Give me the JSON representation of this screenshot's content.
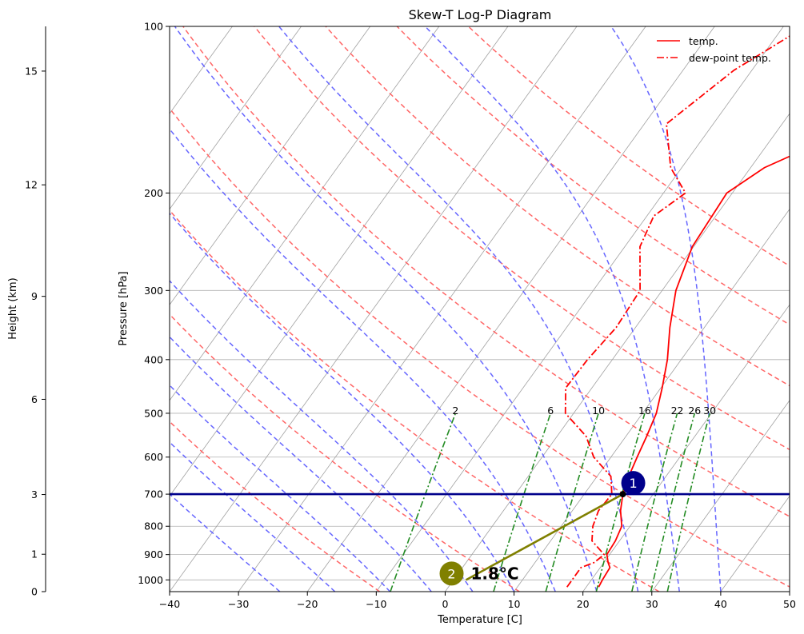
{
  "chart_data": {
    "type": "line",
    "title": "Skew-T Log-P Diagram",
    "xlabel": "Temperature [C]",
    "ylabel": "Pressure [hPa]",
    "height_label": "Height (km)",
    "xlim": [
      -40,
      50
    ],
    "ylim_hpa": [
      1050,
      100
    ],
    "x_ticks": [
      -40,
      -30,
      -20,
      -10,
      0,
      10,
      20,
      30,
      40,
      50
    ],
    "p_ticks": [
      100,
      200,
      300,
      400,
      500,
      600,
      700,
      800,
      900,
      1000
    ],
    "height_ticks": [
      0,
      1,
      3,
      6,
      9,
      12,
      15
    ],
    "grid": true,
    "legend_position": "top-right",
    "colors": {
      "temp": "#ff0000",
      "dewpoint": "#ff0000",
      "isotherm": "#a0a0a0",
      "dry_adiabat": "#ff6666",
      "moist_adiabat": "#6666ff",
      "mixing_ratio": "#228B22",
      "level_line": "#00008b",
      "parcel_line": "#808000",
      "marker_1": "#00008b",
      "marker_2": "#808000"
    },
    "series": [
      {
        "name": "temp.",
        "style": "solid",
        "points": [
          {
            "p": 1030,
            "t": 21.8
          },
          {
            "p": 1000,
            "t": 21.6
          },
          {
            "p": 950,
            "t": 21.4
          },
          {
            "p": 930,
            "t": 20.6
          },
          {
            "p": 900,
            "t": 19.6
          },
          {
            "p": 850,
            "t": 19.4
          },
          {
            "p": 800,
            "t": 18.8
          },
          {
            "p": 750,
            "t": 17.0
          },
          {
            "p": 700,
            "t": 15.6
          },
          {
            "p": 650,
            "t": 14.6
          },
          {
            "p": 600,
            "t": 13.8
          },
          {
            "p": 550,
            "t": 13.0
          },
          {
            "p": 500,
            "t": 12.0
          },
          {
            "p": 450,
            "t": 10.2
          },
          {
            "p": 400,
            "t": 8.0
          },
          {
            "p": 350,
            "t": 5.0
          },
          {
            "p": 300,
            "t": 2.0
          },
          {
            "p": 250,
            "t": -0.2
          },
          {
            "p": 200,
            "t": -0.8
          },
          {
            "p": 180,
            "t": 2.0
          },
          {
            "p": 150,
            "t": 11.6
          },
          {
            "p": 130,
            "t": 14.2
          },
          {
            "p": 100,
            "t": 22.0
          }
        ]
      },
      {
        "name": "dew-point temp.",
        "style": "dashdot",
        "points": [
          {
            "p": 1030,
            "t": 17.2
          },
          {
            "p": 1000,
            "t": 17.2
          },
          {
            "p": 950,
            "t": 17.2
          },
          {
            "p": 930,
            "t": 18.6
          },
          {
            "p": 900,
            "t": 19.2
          },
          {
            "p": 850,
            "t": 16.0
          },
          {
            "p": 800,
            "t": 14.6
          },
          {
            "p": 750,
            "t": 13.8
          },
          {
            "p": 700,
            "t": 14.0
          },
          {
            "p": 650,
            "t": 12.0
          },
          {
            "p": 600,
            "t": 7.5
          },
          {
            "p": 550,
            "t": 4.2
          },
          {
            "p": 500,
            "t": -1.2
          },
          {
            "p": 450,
            "t": -3.8
          },
          {
            "p": 400,
            "t": -3.6
          },
          {
            "p": 350,
            "t": -2.8
          },
          {
            "p": 300,
            "t": -3.2
          },
          {
            "p": 250,
            "t": -7.8
          },
          {
            "p": 220,
            "t": -9.0
          },
          {
            "p": 200,
            "t": -6.8
          },
          {
            "p": 180,
            "t": -11.6
          },
          {
            "p": 150,
            "t": -16.8
          },
          {
            "p": 120,
            "t": -12.6
          },
          {
            "p": 100,
            "t": -6.8
          }
        ]
      }
    ],
    "isotherms_every": 10,
    "dry_adiabats_theta_k": [
      260,
      280,
      300,
      320,
      340,
      360,
      380,
      400,
      420
    ],
    "moist_adiabats_c": [
      -24,
      -16,
      -8,
      -2,
      4,
      10,
      16,
      22,
      28,
      34,
      40
    ],
    "mixing_ratio_lines": {
      "values_gkg": [
        2,
        6,
        10,
        16,
        22,
        26,
        30
      ],
      "label_values": [
        "2",
        "6",
        "10",
        "16",
        "22",
        "26",
        "30"
      ],
      "label_p": 500
    },
    "level_line_p": 700,
    "parcel": {
      "p_start": 1000,
      "t_start": 1.8,
      "p_end": 700,
      "t_end": 15.6
    },
    "markers": [
      {
        "label": "1",
        "p": 700,
        "t": 15.6
      },
      {
        "label": "2",
        "p": 1000,
        "t": 1.8
      }
    ],
    "annotation": "1.8°C"
  }
}
